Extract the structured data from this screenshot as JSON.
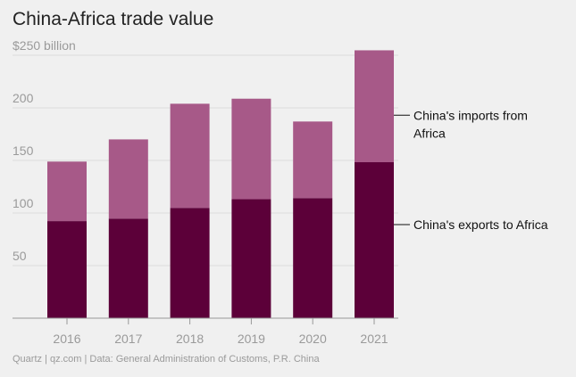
{
  "title": "China-Africa trade value",
  "source": "Quartz | qz.com | Data: General Administration of Customs, P.R. China",
  "chart_data": {
    "type": "bar",
    "stacked": true,
    "title": "China-Africa trade value",
    "categories": [
      "2016",
      "2017",
      "2018",
      "2019",
      "2020",
      "2021"
    ],
    "series": [
      {
        "name": "China's exports to Africa",
        "color": "#5c0039",
        "values": [
          92.3,
          94.7,
          104.9,
          113.2,
          114.2,
          148.3
        ]
      },
      {
        "name": "China's imports from Africa",
        "color": "#a75988",
        "values": [
          56.6,
          75.3,
          99.0,
          95.5,
          72.8,
          106.4
        ]
      }
    ],
    "legend_lines": [
      [
        "China's imports from",
        "Africa"
      ],
      [
        "China's exports to Africa"
      ]
    ],
    "yticks": [
      50,
      100,
      150,
      200,
      250
    ],
    "ytick_labels": [
      "50",
      "100",
      "150",
      "200",
      "$250 billion"
    ],
    "ylim": [
      0,
      250
    ],
    "xlabel": "",
    "ylabel": "",
    "grid": true,
    "legend": "right, direct labels"
  }
}
